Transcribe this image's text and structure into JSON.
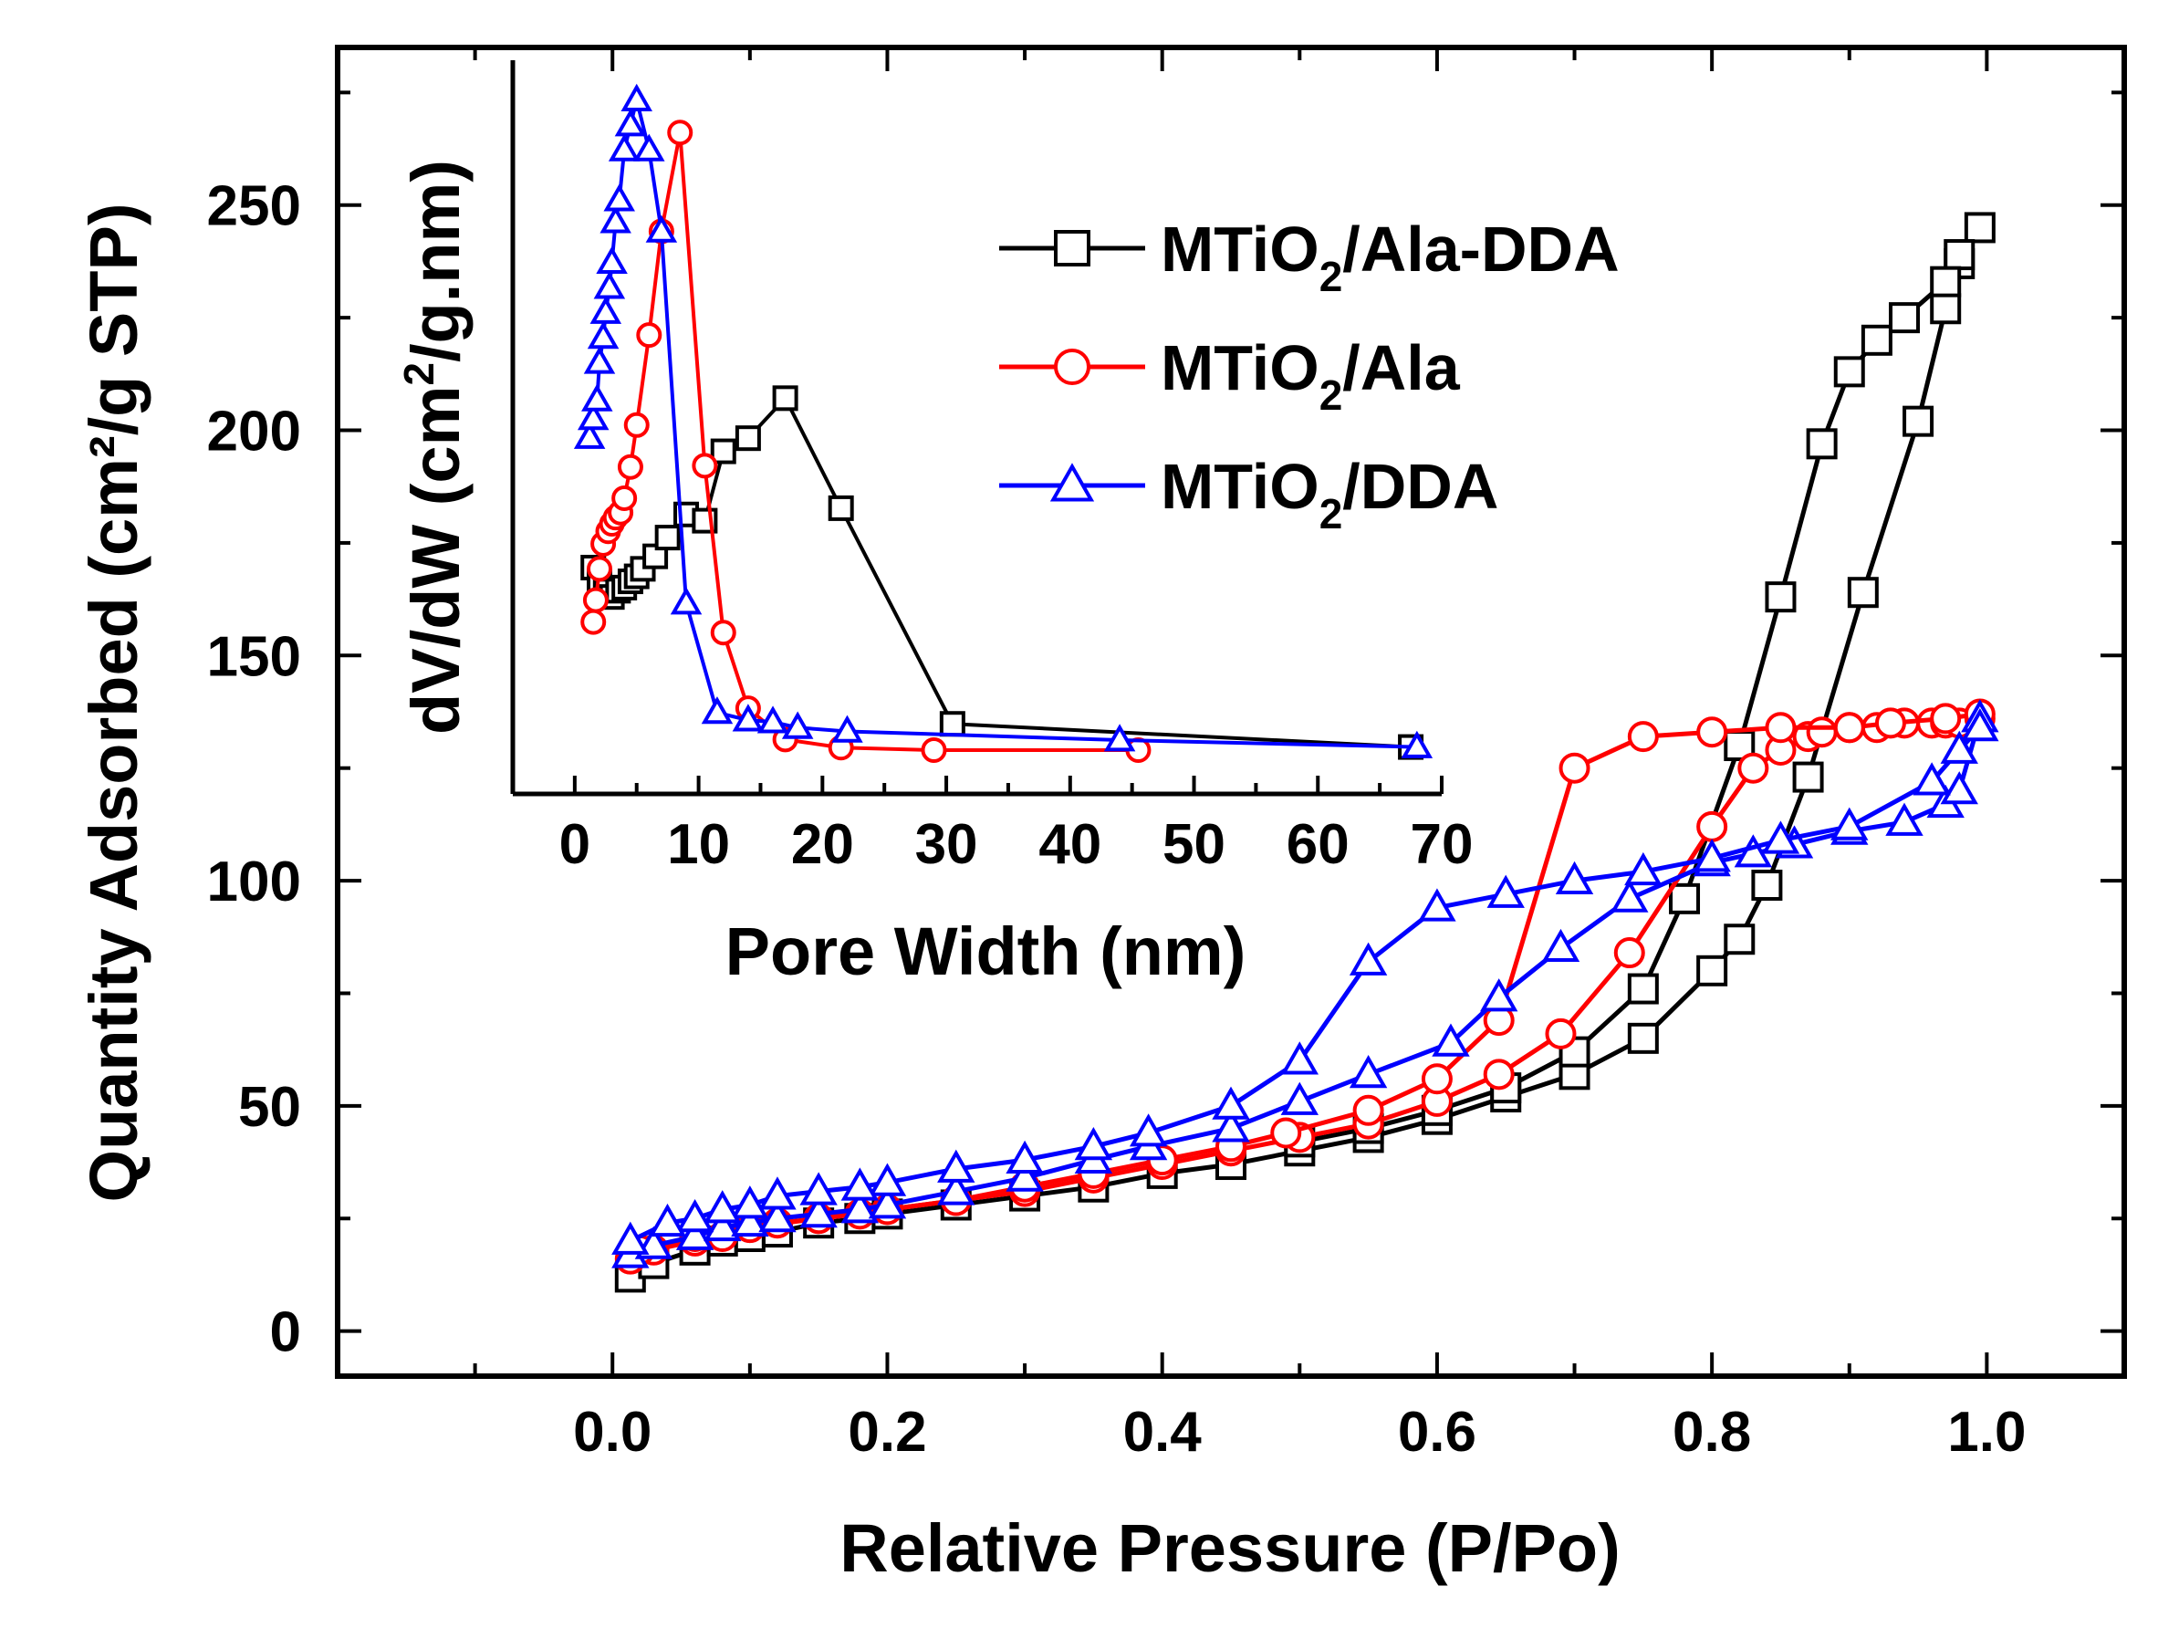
{
  "chart_data": [
    {
      "type": "line",
      "xlabel": "Relative Pressure (P/Po)",
      "ylabel": "Quantity Adsorbed (cm²/g STP)",
      "xlim": [
        -0.2,
        1.1
      ],
      "ylim": [
        -10,
        285
      ],
      "xticks": [
        "0.0",
        "0.2",
        "0.4",
        "0.6",
        "0.8",
        "1.0"
      ],
      "yticks": [
        "0",
        "50",
        "100",
        "150",
        "200",
        "250"
      ],
      "grid": false,
      "legend_position": "top-right (inside inset area)",
      "legend": [
        {
          "label_main": "MTiO",
          "label_sub": "2",
          "label_tail": "/Ala-DDA",
          "color": "#000000",
          "marker": "square"
        },
        {
          "label_main": "MTiO",
          "label_sub": "2",
          "label_tail": "/Ala",
          "color": "#ff0000",
          "marker": "circle"
        },
        {
          "label_main": "MTiO",
          "label_sub": "2",
          "label_tail": "/DDA",
          "color": "#0000ff",
          "marker": "triangle"
        }
      ],
      "series": [
        {
          "name": "MTiO2/Ala-DDA adsorption",
          "color": "#000000",
          "marker": "square",
          "x": [
            0.013,
            0.03,
            0.06,
            0.08,
            0.1,
            0.12,
            0.15,
            0.18,
            0.2,
            0.25,
            0.3,
            0.35,
            0.4,
            0.45,
            0.5,
            0.55,
            0.6,
            0.65,
            0.7,
            0.75,
            0.8,
            0.82,
            0.84,
            0.87,
            0.91,
            0.95,
            0.97,
            0.98
          ],
          "y": [
            12,
            15,
            18,
            20,
            21,
            22,
            24,
            25,
            26,
            28,
            30,
            32,
            35,
            37,
            40,
            43,
            47,
            52,
            57,
            65,
            80,
            87,
            99,
            123,
            164,
            202,
            227,
            237
          ]
        },
        {
          "name": "MTiO2/Ala-DDA desorption",
          "color": "#000000",
          "marker": "square",
          "x": [
            0.995,
            0.98,
            0.97,
            0.94,
            0.92,
            0.9,
            0.88,
            0.85,
            0.82,
            0.78,
            0.75,
            0.7,
            0.65,
            0.6,
            0.55,
            0.5
          ],
          "y": [
            245,
            239,
            233,
            225,
            220,
            213,
            197,
            163,
            130,
            96,
            76,
            62,
            54,
            49,
            45,
            42
          ]
        },
        {
          "name": "MTiO2/Ala adsorption",
          "color": "#ff0000",
          "marker": "circle",
          "x": [
            0.013,
            0.03,
            0.06,
            0.08,
            0.1,
            0.12,
            0.15,
            0.18,
            0.2,
            0.25,
            0.3,
            0.35,
            0.4,
            0.45,
            0.5,
            0.55,
            0.6,
            0.645,
            0.69,
            0.74,
            0.8,
            0.83,
            0.85,
            0.87,
            0.88,
            0.9,
            0.92,
            0.94,
            0.96,
            0.97,
            0.98,
            0.995
          ],
          "y": [
            16,
            18,
            20,
            21,
            23,
            24,
            25,
            26,
            27,
            29,
            31,
            34,
            37,
            40,
            43,
            46,
            51,
            57,
            66,
            84,
            112,
            125,
            129,
            132,
            133,
            134,
            134,
            135,
            135,
            135,
            135,
            136
          ]
        },
        {
          "name": "MTiO2/Ala desorption",
          "color": "#ff0000",
          "marker": "circle",
          "x": [
            0.995,
            0.97,
            0.93,
            0.9,
            0.85,
            0.8,
            0.75,
            0.7,
            0.645,
            0.6,
            0.55,
            0.49,
            0.45,
            0.4,
            0.35,
            0.3,
            0.25,
            0.2,
            0.15,
            0.1,
            0.06,
            0.02
          ],
          "y": [
            137,
            136,
            135,
            134,
            134,
            133,
            132,
            125,
            69,
            56,
            49,
            44,
            41,
            38,
            35,
            32,
            29,
            27,
            25,
            23,
            21,
            18
          ]
        },
        {
          "name": "MTiO2/DDA adsorption",
          "color": "#0000ff",
          "marker": "triangle",
          "x": [
            0.013,
            0.03,
            0.06,
            0.08,
            0.1,
            0.12,
            0.15,
            0.18,
            0.2,
            0.25,
            0.3,
            0.35,
            0.39,
            0.45,
            0.5,
            0.55,
            0.61,
            0.645,
            0.69,
            0.74,
            0.8,
            0.83,
            0.86,
            0.9,
            0.94,
            0.97,
            0.98,
            0.995
          ],
          "y": [
            17,
            19,
            21,
            23,
            24,
            25,
            26,
            27,
            28,
            31,
            34,
            38,
            41,
            45,
            51,
            57,
            64,
            74,
            85,
            96,
            104,
            106,
            108,
            111,
            113,
            117,
            120,
            136
          ]
        },
        {
          "name": "MTiO2/DDA desorption",
          "color": "#0000ff",
          "marker": "triangle",
          "x": [
            0.995,
            0.98,
            0.96,
            0.9,
            0.85,
            0.8,
            0.75,
            0.7,
            0.65,
            0.6,
            0.55,
            0.5,
            0.45,
            0.39,
            0.35,
            0.3,
            0.25,
            0.2,
            0.18,
            0.15,
            0.12,
            0.1,
            0.08,
            0.06,
            0.04,
            0.013
          ],
          "y": [
            134,
            129,
            122,
            112,
            109,
            105,
            102,
            100,
            97,
            94,
            82,
            60,
            50,
            44,
            41,
            38,
            36,
            33,
            32,
            31,
            30,
            28,
            27,
            25,
            24,
            20
          ]
        }
      ]
    },
    {
      "type": "line",
      "xlabel": "Pore Width (nm)",
      "ylabel": "dV/dW (cm²/g.nm)",
      "ylabel_parts": {
        "before": "dV/dW (cm",
        "sup": "2",
        "after": "/g.nm)"
      },
      "xlim": [
        -5,
        70
      ],
      "ylim": [
        0,
        1
      ],
      "xticks": [
        "0",
        "10",
        "20",
        "30",
        "40",
        "50",
        "60",
        "70"
      ],
      "yticks": [],
      "grid": false,
      "series": [
        {
          "name": "MTiO2/Ala-DDA",
          "color": "#000000",
          "marker": "square",
          "x": [
            1.5,
            2.0,
            2.5,
            3.0,
            3.5,
            4.0,
            4.5,
            5.0,
            5.5,
            6.5,
            7.5,
            9.0,
            10.5,
            12.0,
            14.0,
            17.0,
            21.5,
            30.5,
            67.5
          ],
          "y": [
            0.292,
            0.27,
            0.255,
            0.245,
            0.255,
            0.26,
            0.27,
            0.278,
            0.29,
            0.31,
            0.34,
            0.377,
            0.367,
            0.478,
            0.499,
            0.563,
            0.387,
            0.042,
            0.005
          ]
        },
        {
          "name": "MTiO2/Ala",
          "color": "#ff0000",
          "marker": "circle",
          "x": [
            1.5,
            1.7,
            2.0,
            2.3,
            2.7,
            3.0,
            3.3,
            3.7,
            4.0,
            4.5,
            5.0,
            6.0,
            7.0,
            8.5,
            10.5,
            12.0,
            14.0,
            17.0,
            21.5,
            29.0,
            45.5
          ],
          "y": [
            0.205,
            0.24,
            0.29,
            0.33,
            0.35,
            0.362,
            0.372,
            0.38,
            0.403,
            0.453,
            0.52,
            0.664,
            0.83,
            0.988,
            0.455,
            0.188,
            0.067,
            0.017,
            0.004,
            0.0,
            0.0
          ]
        },
        {
          "name": "MTiO2/DDA",
          "color": "#0000ff",
          "marker": "triangle",
          "x": [
            1.2,
            1.5,
            1.8,
            2.0,
            2.3,
            2.5,
            2.8,
            3.0,
            3.3,
            3.6,
            4.0,
            4.5,
            5.0,
            6.0,
            7.0,
            9.0,
            11.5,
            14.0,
            16.0,
            18.0,
            22.0,
            44.0,
            68.0
          ],
          "y": [
            0.5,
            0.53,
            0.56,
            0.62,
            0.66,
            0.7,
            0.74,
            0.78,
            0.845,
            0.88,
            0.96,
            1.0,
            1.04,
            0.96,
            0.83,
            0.235,
            0.06,
            0.048,
            0.045,
            0.036,
            0.03,
            0.016,
            0.005
          ]
        }
      ]
    }
  ]
}
